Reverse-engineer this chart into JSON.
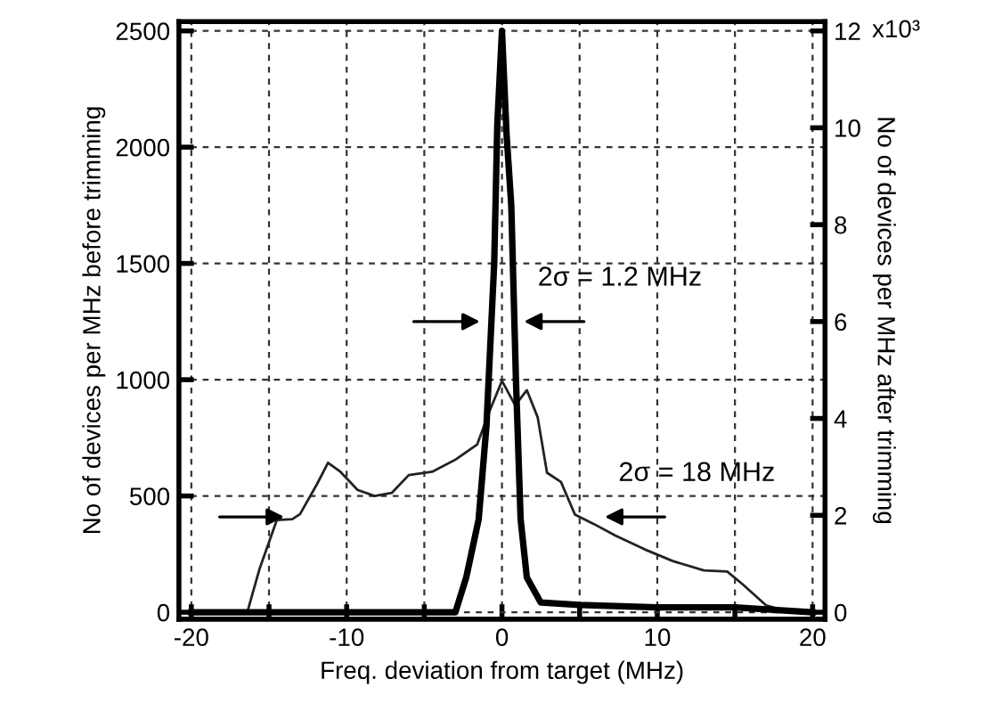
{
  "chart_data": {
    "type": "line",
    "xlabel": "Freq. deviation from target (MHz)",
    "ylabel": "No of devices per MHz before trimming",
    "y2label": "No of devices per MHz after trimming",
    "series": [
      {
        "color": "#222222",
        "x": [
          -20,
          -16.4,
          -15.6,
          -14.5,
          -13.5,
          -13,
          -11.9,
          -11.2,
          -10.4,
          -9.3,
          -8.2,
          -7.1,
          -6,
          -4.5,
          -3,
          -1.6,
          -0.8,
          0,
          0.85,
          1.6,
          2.3,
          2.9,
          3.8,
          4.7,
          5.9,
          7.3,
          9.2,
          11,
          13,
          14.5,
          15.5,
          17,
          18,
          20
        ],
        "values": [
          0,
          0,
          188,
          396,
          400,
          422,
          552,
          643,
          604,
          526,
          500,
          513,
          590,
          604,
          656,
          721,
          865,
          995,
          890,
          955,
          838,
          600,
          560,
          420,
          380,
          330,
          270,
          220,
          180,
          175,
          120,
          30,
          10,
          0
        ]
      },
      {
        "color": "#000000",
        "axis": "y2",
        "x": [
          -20,
          -3,
          -2.3,
          -1.5,
          -1,
          -0.5,
          -0.3,
          0,
          0.3,
          0.6,
          0.9,
          1.2,
          1.6,
          2.5,
          5,
          10,
          15,
          20
        ],
        "values": [
          0,
          0,
          0.72,
          1.92,
          3.84,
          7.2,
          10.08,
          12,
          9.84,
          8.4,
          4.8,
          1.92,
          0.72,
          0.2,
          0.15,
          0.1,
          0.1,
          0
        ]
      }
    ],
    "xlim": [
      -20.8,
      20.8
    ],
    "xticks": [
      -20,
      {
        "value": -15,
        "label": null
      },
      -10,
      {
        "value": -5,
        "label": null
      },
      0,
      {
        "value": 5,
        "label": null
      },
      10,
      {
        "value": 15,
        "label": null
      },
      20
    ],
    "ylim": [
      -30,
      2540
    ],
    "yticks": [
      0,
      500,
      1000,
      1500,
      2000,
      2500
    ],
    "y2lim": [
      -0.144,
      12.192
    ],
    "y2ticks": [
      0,
      2,
      4,
      6,
      8,
      10,
      12
    ],
    "grid": true,
    "annotations": [
      {
        "text": "2σ = 1.2 MHz",
        "x": 1.1,
        "y": 1250
      },
      {
        "text": "2σ = 18 MHz",
        "x": 6.3,
        "y": 410
      },
      "x10³"
    ]
  }
}
